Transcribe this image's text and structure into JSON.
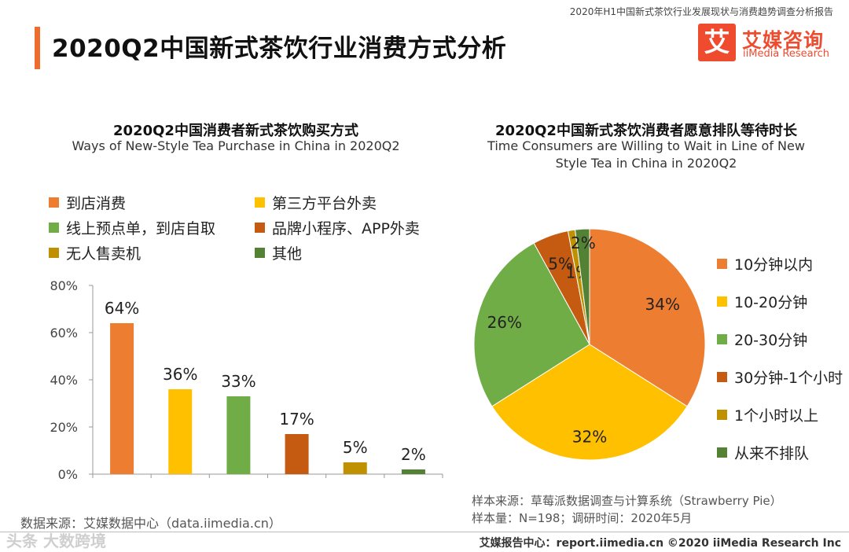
{
  "header": {
    "report_name": "2020年H1中国新式茶饮行业发展现状与消费趋势调查分析报告",
    "page_title": "2020Q2中国新式茶饮行业消费方式分析",
    "logo_glyph": "艾",
    "logo_cn": "艾媒咨询",
    "logo_en": "iiMedia Research"
  },
  "colors": {
    "accent": "#ef6c2f",
    "logo": "#ef4b2f"
  },
  "chart_data": [
    {
      "type": "bar",
      "title": "2020Q2中国消费者新式茶饮购买方式",
      "subtitle": "Ways of New-Style Tea Purchase in China in 2020Q2",
      "categories": [
        "到店消费",
        "第三方平台外卖",
        "线上预点单，到店自取",
        "品牌小程序、APP外卖",
        "无人售卖机",
        "其他"
      ],
      "values": [
        64,
        36,
        33,
        17,
        5,
        2
      ],
      "data_labels": [
        "64%",
        "36%",
        "33%",
        "17%",
        "5%",
        "2%"
      ],
      "colors": [
        "#ed7d31",
        "#ffc000",
        "#70ad47",
        "#c55a11",
        "#bf9000",
        "#548235"
      ],
      "ylim": [
        0,
        80
      ],
      "yticks": [
        "0%",
        "20%",
        "40%",
        "60%",
        "80%"
      ],
      "legend": "top",
      "grid": false
    },
    {
      "type": "pie",
      "title": "2020Q2中国新式茶饮消费者愿意排队等待时长",
      "subtitle": "Time Consumers are Willing to Wait in Line of New Style Tea in China in 2020Q2",
      "categories": [
        "10分钟以内",
        "10-20分钟",
        "20-30分钟",
        "30分钟-1个小时",
        "1个小时以上",
        "从来不排队"
      ],
      "values": [
        34,
        32,
        26,
        5,
        1,
        2
      ],
      "data_labels": [
        "34%",
        "32%",
        "26%",
        "5%",
        "1%",
        "2%"
      ],
      "colors": [
        "#ed7d31",
        "#ffc000",
        "#70ad47",
        "#c55a11",
        "#bf9000",
        "#548235"
      ],
      "legend": "right"
    }
  ],
  "source_left": "数据来源：艾媒数据中心（data.iimedia.cn）",
  "sample_source": "样本来源：草莓派数据调查与计算系统（Strawberry Pie）",
  "sample_size": "样本量：N=198；调研时间：2020年5月",
  "watermark": "头条 大数跨境",
  "footer": "艾媒报告中心：report.iimedia.cn   ©2020  iiMedia Research  Inc"
}
